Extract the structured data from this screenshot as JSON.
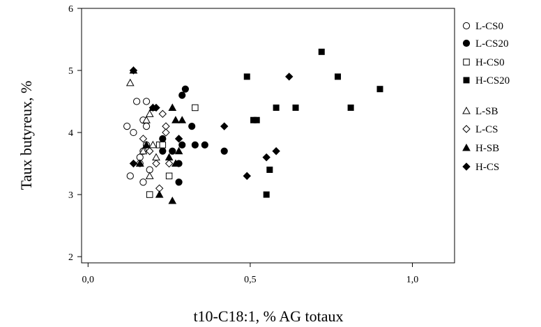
{
  "chart_data": {
    "type": "scatter",
    "xlabel": "t10-C18:1, % AG totaux",
    "ylabel": "Taux butyreux, %",
    "xlim": [
      -0.02,
      1.13
    ],
    "ylim": [
      1.9,
      6.0
    ],
    "x_ticks": [
      0.0,
      0.5,
      1.0
    ],
    "x_tick_labels": [
      "0,0",
      "0,5",
      "1,0"
    ],
    "y_ticks": [
      2,
      3,
      4,
      5,
      6
    ],
    "y_tick_labels": [
      "2",
      "3",
      "4",
      "5",
      "6"
    ],
    "grid": false,
    "legend_position": "right",
    "series": [
      {
        "name": "L-CS0",
        "marker": "circle",
        "filled": false,
        "points": [
          [
            0.12,
            4.1
          ],
          [
            0.13,
            3.3
          ],
          [
            0.14,
            4.0
          ],
          [
            0.15,
            4.5
          ],
          [
            0.16,
            3.6
          ],
          [
            0.16,
            3.5
          ],
          [
            0.17,
            4.2
          ],
          [
            0.17,
            3.2
          ],
          [
            0.18,
            4.1
          ],
          [
            0.18,
            4.5
          ],
          [
            0.18,
            3.8
          ],
          [
            0.19,
            3.4
          ],
          [
            0.17,
            3.7
          ]
        ]
      },
      {
        "name": "L-CS20",
        "marker": "circle",
        "filled": true,
        "points": [
          [
            0.23,
            3.9
          ],
          [
            0.23,
            3.7
          ],
          [
            0.26,
            3.7
          ],
          [
            0.28,
            3.5
          ],
          [
            0.28,
            3.2
          ],
          [
            0.29,
            3.8
          ],
          [
            0.29,
            4.6
          ],
          [
            0.3,
            4.7
          ],
          [
            0.32,
            4.1
          ],
          [
            0.33,
            3.8
          ],
          [
            0.36,
            3.8
          ],
          [
            0.42,
            3.7
          ]
        ]
      },
      {
        "name": "H-CS0",
        "marker": "square",
        "filled": false,
        "points": [
          [
            0.19,
            3.0
          ],
          [
            0.22,
            3.8
          ],
          [
            0.23,
            3.8
          ],
          [
            0.25,
            3.3
          ],
          [
            0.33,
            4.4
          ]
        ]
      },
      {
        "name": "H-CS20",
        "marker": "square",
        "filled": true,
        "points": [
          [
            0.49,
            4.9
          ],
          [
            0.51,
            4.2
          ],
          [
            0.52,
            4.2
          ],
          [
            0.55,
            3.0
          ],
          [
            0.56,
            3.4
          ],
          [
            0.58,
            4.4
          ],
          [
            0.64,
            4.4
          ],
          [
            0.72,
            5.3
          ],
          [
            0.77,
            4.9
          ],
          [
            0.81,
            4.4
          ],
          [
            0.9,
            4.7
          ]
        ]
      },
      {
        "name": "L-SB",
        "marker": "triangle",
        "filled": false,
        "points": [
          [
            0.13,
            4.8
          ],
          [
            0.16,
            3.5
          ],
          [
            0.17,
            3.7
          ],
          [
            0.18,
            4.2
          ],
          [
            0.19,
            3.3
          ],
          [
            0.19,
            4.3
          ],
          [
            0.2,
            3.8
          ],
          [
            0.21,
            3.6
          ]
        ]
      },
      {
        "name": "L-CS",
        "marker": "diamond",
        "filled": false,
        "points": [
          [
            0.17,
            3.9
          ],
          [
            0.19,
            3.7
          ],
          [
            0.21,
            3.5
          ],
          [
            0.22,
            3.1
          ],
          [
            0.23,
            4.3
          ],
          [
            0.24,
            4.1
          ],
          [
            0.24,
            4.0
          ],
          [
            0.25,
            3.5
          ]
        ]
      },
      {
        "name": "H-SB",
        "marker": "triangle",
        "filled": true,
        "points": [
          [
            0.14,
            5.0
          ],
          [
            0.16,
            3.5
          ],
          [
            0.18,
            3.8
          ],
          [
            0.2,
            4.4
          ],
          [
            0.22,
            3.0
          ],
          [
            0.25,
            3.6
          ],
          [
            0.26,
            4.4
          ],
          [
            0.26,
            2.9
          ],
          [
            0.27,
            4.2
          ],
          [
            0.27,
            3.5
          ],
          [
            0.29,
            4.2
          ],
          [
            0.28,
            3.7
          ]
        ]
      },
      {
        "name": "H-CS",
        "marker": "diamond",
        "filled": true,
        "points": [
          [
            0.14,
            3.5
          ],
          [
            0.14,
            5.0
          ],
          [
            0.2,
            4.4
          ],
          [
            0.21,
            4.4
          ],
          [
            0.28,
            3.9
          ],
          [
            0.42,
            4.1
          ],
          [
            0.49,
            3.3
          ],
          [
            0.55,
            3.6
          ],
          [
            0.58,
            3.7
          ],
          [
            0.62,
            4.9
          ]
        ]
      }
    ]
  }
}
